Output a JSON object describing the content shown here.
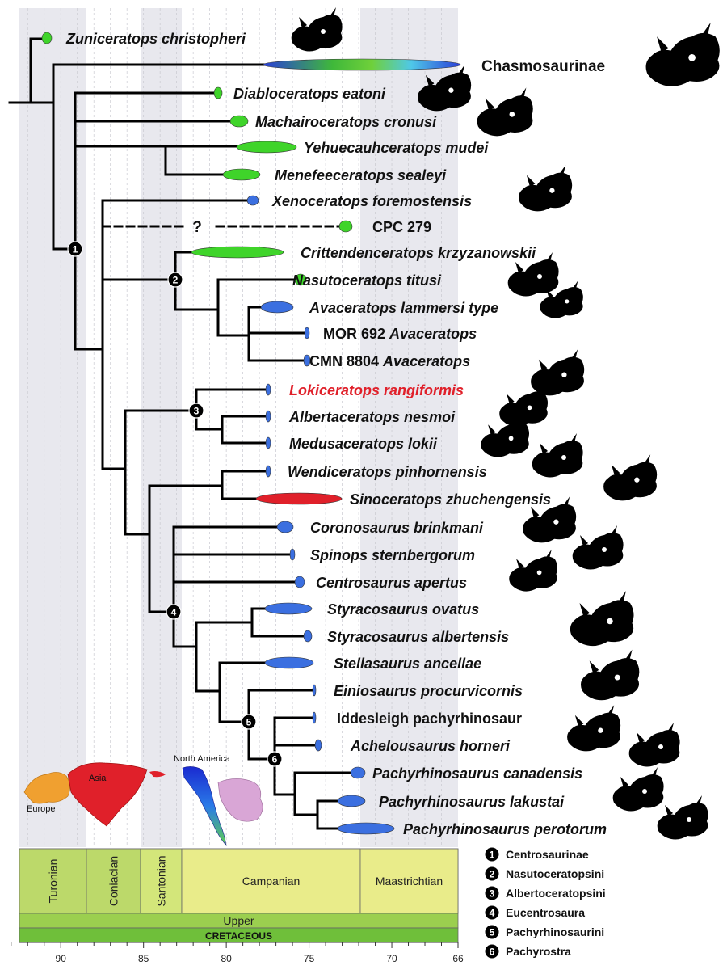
{
  "taxa": [
    {
      "name": "Zuniceratops christopheri",
      "style": "italic"
    },
    {
      "name": "Chasmosaurinae",
      "style": "plain"
    },
    {
      "name": "Diabloceratops eatoni",
      "style": "italic"
    },
    {
      "name": "Machairoceratops cronusi",
      "style": "italic"
    },
    {
      "name": "Yehuecauhceratops mudei",
      "style": "italic"
    },
    {
      "name": "Menefeeceratops sealeyi",
      "style": "italic"
    },
    {
      "name": "Xenoceratops foremostensis",
      "style": "italic"
    },
    {
      "name": "CPC 279",
      "style": "plain"
    },
    {
      "name": "Crittendenceratops krzyzanowskii",
      "style": "italic"
    },
    {
      "name": "Nasutoceratops titusi",
      "style": "italic"
    },
    {
      "name": "Avaceratops lammersi type",
      "style": "italic"
    },
    {
      "name": "MOR 692 ",
      "name2": "Avaceratops",
      "style": "mixed"
    },
    {
      "name": "CMN 8804 ",
      "name2": "Avaceratops",
      "style": "mixed"
    },
    {
      "name": "Lokiceratops rangiformis",
      "style": "italic-red"
    },
    {
      "name": "Albertaceratops nesmoi",
      "style": "italic"
    },
    {
      "name": "Medusaceratops lokii",
      "style": "italic"
    },
    {
      "name": "Wendiceratops pinhornensis",
      "style": "italic"
    },
    {
      "name": "Sinoceratops zhuchengensis",
      "style": "italic"
    },
    {
      "name": "Coronosaurus brinkmani",
      "style": "italic"
    },
    {
      "name": "Spinops sternbergorum",
      "style": "italic"
    },
    {
      "name": "Centrosaurus apertus",
      "style": "italic"
    },
    {
      "name": "Styracosaurus ovatus",
      "style": "italic"
    },
    {
      "name": "Styracosaurus albertensis",
      "style": "italic"
    },
    {
      "name": "Stellasaurus ancellae",
      "style": "italic"
    },
    {
      "name": "Einiosaurus procurvicornis",
      "style": "italic"
    },
    {
      "name": "Iddesleigh pachyrhinosaur",
      "style": "plain"
    },
    {
      "name": "Achelousaurus horneri",
      "style": "italic"
    },
    {
      "name": "Pachyrhinosaurus canadensis",
      "style": "italic"
    },
    {
      "name": "Pachyrhinosaurus lakustai",
      "style": "italic"
    },
    {
      "name": "Pachyrhinosaurus perotorum",
      "style": "italic"
    }
  ],
  "unknown_marker": "?",
  "stages": [
    "Turonian",
    "Coniacian",
    "Santonian",
    "Campanian",
    "Maastrichtian"
  ],
  "epoch": "Upper",
  "period": "CRETACEOUS",
  "axis_ticks": [
    90,
    85,
    80,
    75,
    70,
    66
  ],
  "map_labels": {
    "europe": "Europe",
    "asia": "Asia",
    "north_america": "North America"
  },
  "legend": [
    {
      "num": "1",
      "label": "Centrosaurinae"
    },
    {
      "num": "2",
      "label": "Nasutoceratopsini"
    },
    {
      "num": "3",
      "label": "Albertoceratopsini"
    },
    {
      "num": "4",
      "label": "Eucentrosaura"
    },
    {
      "num": "5",
      "label": "Pachyrhinosaurini"
    },
    {
      "num": "6",
      "label": "Pachyrostra"
    }
  ],
  "node_numbers": [
    "1",
    "2",
    "3",
    "4",
    "5",
    "6"
  ],
  "colors": {
    "north_america": "#3b6fe0",
    "asia": "#e0202a",
    "green_range": "#3fd42a",
    "stage_fill": "#e9ec8a",
    "epoch_fill": "#9bcf4f",
    "period_fill": "#6fbf3a",
    "grid_band": "#e8e8ee"
  }
}
